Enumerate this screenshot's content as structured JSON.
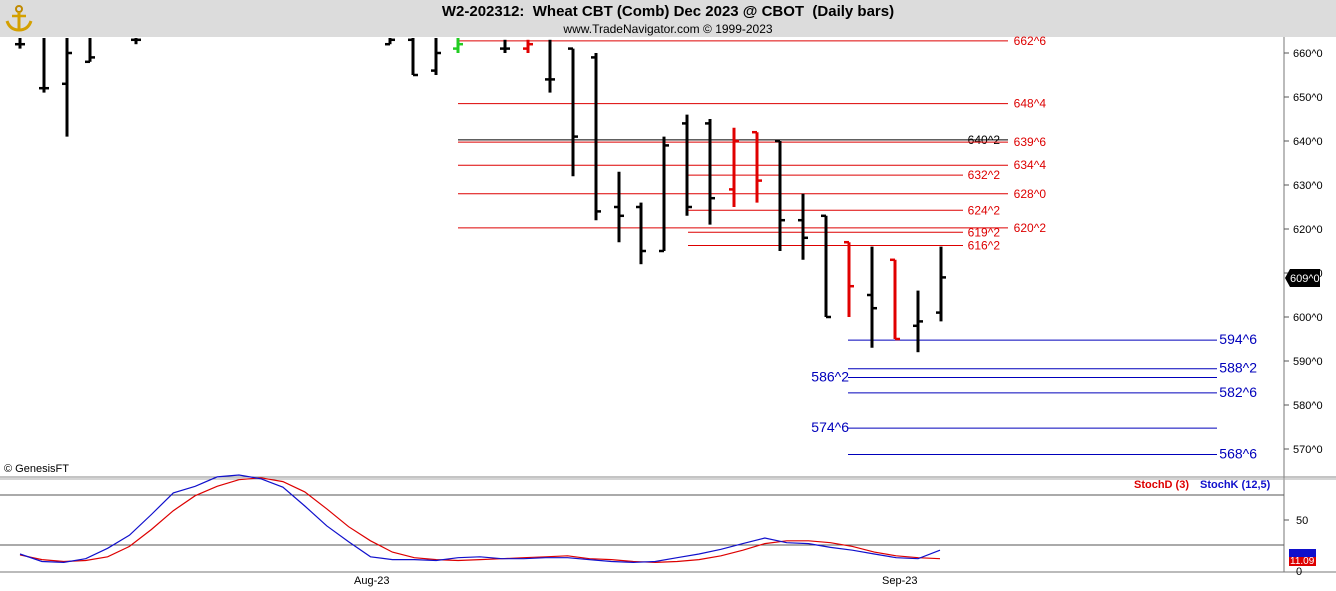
{
  "header": {
    "title": "W2-202312:  Wheat CBT (Comb) Dec 2023 @ CBOT  (Daily bars)",
    "copyright": "www.TradeNavigator.com © 1999-2023",
    "logo_icon": "anchor-logo-icon"
  },
  "watermark": "© GenesisFT",
  "colors": {
    "bar_up": "#000000",
    "bar_down": "#e00000",
    "resistance": "#dd0000",
    "support": "#0000bb",
    "stoch_d": "#dd0000",
    "stoch_k": "#1010cc"
  },
  "chart_data": [
    {
      "type": "ohlc",
      "title": "W2-202312:  Wheat CBT (Comb) Dec 2023 @ CBOT  (Daily bars)",
      "price_axis_ticks": [
        "660^0",
        "650^0",
        "640^0",
        "630^0",
        "620^0",
        "610^0",
        "600^0",
        "590^0",
        "580^0",
        "570^0"
      ],
      "ylim": [
        565,
        663
      ],
      "last_price_label": "609^0",
      "last_price": 609,
      "bars": [
        {
          "o": 662,
          "h": 668,
          "l": 661,
          "c": 662,
          "color": "up"
        },
        {
          "o": 652,
          "h": 670,
          "l": 651,
          "c": 652,
          "color": "up"
        },
        {
          "o": 653,
          "h": 670,
          "l": 641,
          "c": 660,
          "color": "up"
        },
        {
          "o": 658,
          "h": 670,
          "l": 658,
          "c": 659,
          "color": "up"
        },
        {
          "o": 663,
          "h": 668,
          "l": 662,
          "c": 663,
          "color": "up"
        },
        {
          "o": 662,
          "h": 668,
          "l": 662,
          "c": 663,
          "color": "up"
        },
        {
          "o": 663,
          "h": 670,
          "l": 655,
          "c": 655,
          "color": "up"
        },
        {
          "o": 656,
          "h": 670,
          "l": 655,
          "c": 660,
          "color": "up"
        },
        {
          "o": 661,
          "h": 664,
          "l": 660,
          "c": 662,
          "color": "green"
        },
        {
          "o": 661,
          "h": 663,
          "l": 660,
          "c": 661,
          "color": "up"
        },
        {
          "o": 661,
          "h": 663,
          "l": 660,
          "c": 662,
          "color": "down"
        },
        {
          "o": 654,
          "h": 663,
          "l": 651,
          "c": 654,
          "color": "up"
        },
        {
          "o": 661,
          "h": 661,
          "l": 632,
          "c": 641,
          "color": "up"
        },
        {
          "o": 659,
          "h": 660,
          "l": 622,
          "c": 624,
          "color": "up"
        },
        {
          "o": 625,
          "h": 633,
          "l": 617,
          "c": 623,
          "color": "up"
        },
        {
          "o": 625,
          "h": 626,
          "l": 612,
          "c": 615,
          "color": "up"
        },
        {
          "o": 615,
          "h": 641,
          "l": 615,
          "c": 639,
          "color": "up"
        },
        {
          "o": 644,
          "h": 646,
          "l": 623,
          "c": 625,
          "color": "up"
        },
        {
          "o": 644,
          "h": 645,
          "l": 621,
          "c": 627,
          "color": "up"
        },
        {
          "o": 629,
          "h": 643,
          "l": 625,
          "c": 640,
          "color": "down"
        },
        {
          "o": 642,
          "h": 642,
          "l": 626,
          "c": 631,
          "color": "down"
        },
        {
          "o": 640,
          "h": 640,
          "l": 615,
          "c": 622,
          "color": "up"
        },
        {
          "o": 622,
          "h": 628,
          "l": 613,
          "c": 618,
          "color": "up"
        },
        {
          "o": 623,
          "h": 623,
          "l": 600,
          "c": 600,
          "color": "up"
        },
        {
          "o": 617,
          "h": 617,
          "l": 600,
          "c": 607,
          "color": "down"
        },
        {
          "o": 605,
          "h": 616,
          "l": 593,
          "c": 602,
          "color": "up"
        },
        {
          "o": 613,
          "h": 613,
          "l": 595,
          "c": 595,
          "color": "down"
        },
        {
          "o": 598,
          "h": 606,
          "l": 592,
          "c": 599,
          "color": "up"
        },
        {
          "o": 601,
          "h": 616,
          "l": 599,
          "c": 609,
          "color": "up"
        }
      ],
      "levels": [
        {
          "label": "662^6",
          "value": 662.75,
          "kind": "resistance",
          "style": "long"
        },
        {
          "label": "648^4",
          "value": 648.5,
          "kind": "resistance",
          "style": "long"
        },
        {
          "label": "640^2",
          "value": 640.25,
          "kind": "neutral",
          "style": "long"
        },
        {
          "label": "639^6",
          "value": 639.75,
          "kind": "resistance",
          "style": "long"
        },
        {
          "label": "634^4",
          "value": 634.5,
          "kind": "resistance",
          "style": "long"
        },
        {
          "label": "632^2",
          "value": 632.25,
          "kind": "resistance",
          "style": "short"
        },
        {
          "label": "628^0",
          "value": 628.0,
          "kind": "resistance",
          "style": "long"
        },
        {
          "label": "624^2",
          "value": 624.25,
          "kind": "resistance",
          "style": "short"
        },
        {
          "label": "620^2",
          "value": 620.25,
          "kind": "resistance",
          "style": "long"
        },
        {
          "label": "619^2",
          "value": 619.25,
          "kind": "resistance",
          "style": "short"
        },
        {
          "label": "616^2",
          "value": 616.25,
          "kind": "resistance",
          "style": "short"
        },
        {
          "label": "594^6",
          "value": 594.75,
          "kind": "support",
          "style": "right"
        },
        {
          "label": "588^2",
          "value": 588.25,
          "kind": "support",
          "style": "right"
        },
        {
          "label": "586^2",
          "value": 586.25,
          "kind": "support",
          "style": "left"
        },
        {
          "label": "582^6",
          "value": 582.75,
          "kind": "support",
          "style": "right"
        },
        {
          "label": "574^6",
          "value": 574.75,
          "kind": "support",
          "style": "left"
        },
        {
          "label": "568^6",
          "value": 568.75,
          "kind": "support",
          "style": "right"
        }
      ]
    },
    {
      "type": "line",
      "title": "",
      "ylim": [
        0,
        100
      ],
      "axis_ticks": [
        "50",
        "0"
      ],
      "legend": [
        "StochD (3)",
        "StochK (12,5)"
      ],
      "legend_position": "top-right",
      "x_labels": [
        "Aug-23",
        "Sep-23"
      ],
      "last_value_label": "11.09",
      "series": [
        {
          "name": "StochD (3)",
          "values": [
            15,
            10,
            8,
            9,
            13,
            24,
            42,
            62,
            78,
            88,
            95,
            97,
            93,
            82,
            64,
            45,
            30,
            18,
            12,
            10,
            9,
            10,
            11,
            12,
            13,
            14,
            11,
            10,
            8,
            7,
            8,
            10,
            14,
            20,
            27,
            30,
            30,
            28,
            24,
            18,
            14,
            12,
            11
          ]
        },
        {
          "name": "StochK (12,5)",
          "values": [
            16,
            8,
            7,
            11,
            22,
            36,
            58,
            81,
            88,
            98,
            100,
            96,
            87,
            67,
            46,
            29,
            13,
            10,
            10,
            9,
            12,
            13,
            11,
            11,
            12,
            12,
            10,
            8,
            7,
            8,
            12,
            16,
            21,
            27,
            33,
            28,
            27,
            23,
            20,
            16,
            12,
            11,
            20
          ]
        }
      ]
    }
  ]
}
